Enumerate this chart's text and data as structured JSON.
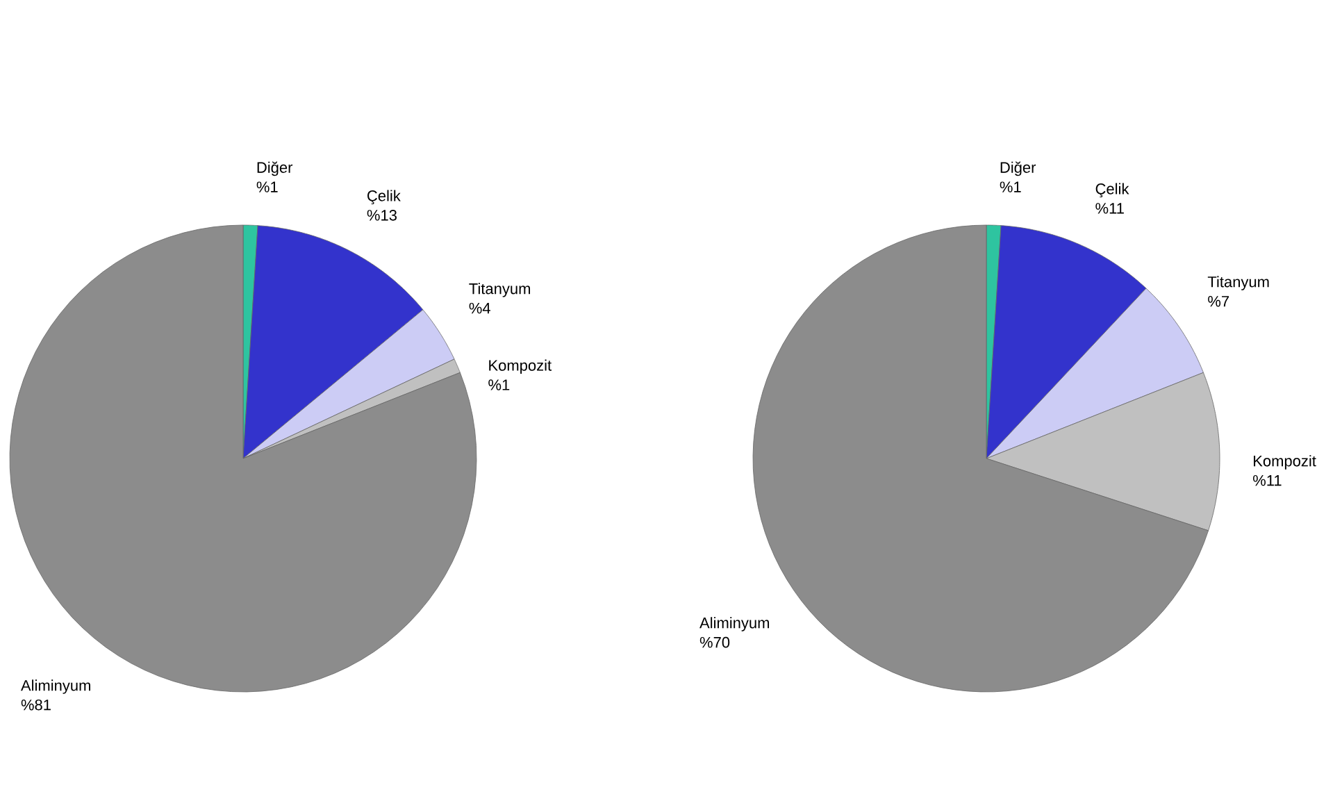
{
  "chart_data": [
    {
      "type": "pie",
      "categories": [
        "Diğer",
        "Çelik",
        "Titanyum",
        "Kompozit",
        "Aliminyum"
      ],
      "values": [
        1,
        13,
        4,
        1,
        81
      ],
      "colors": [
        "#2ec4a0",
        "#3333cc",
        "#ccccf5",
        "#c0c0c0",
        "#8c8c8c"
      ],
      "value_labels": [
        "%1",
        "%13",
        "%4",
        "%1",
        "%81"
      ]
    },
    {
      "type": "pie",
      "categories": [
        "Diğer",
        "Çelik",
        "Titanyum",
        "Kompozit",
        "Aliminyum"
      ],
      "values": [
        1,
        11,
        7,
        11,
        70
      ],
      "colors": [
        "#2ec4a0",
        "#3333cc",
        "#ccccf5",
        "#c0c0c0",
        "#8c8c8c"
      ],
      "value_labels": [
        "%1",
        "%11",
        "%7",
        "%11",
        "%70"
      ]
    }
  ]
}
